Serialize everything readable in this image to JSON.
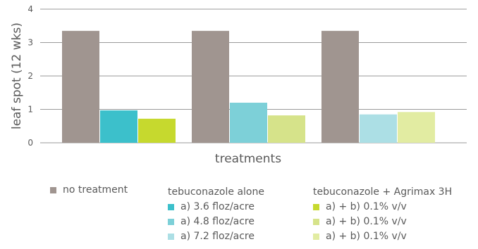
{
  "chart_data": {
    "type": "bar",
    "xlabel": "treatments",
    "ylabel": "leaf spot (12 wks)",
    "ylim": [
      0,
      4
    ],
    "yticks": [
      0,
      1,
      2,
      3,
      4
    ],
    "grid": true,
    "groups": [
      {
        "bars": [
          {
            "label": "no treatment",
            "value": 3.35,
            "color": "#a09590"
          },
          {
            "label": "tebuconazole alone a) 3.6 floz/acre",
            "value": 0.97,
            "color": "#3cc0cb"
          },
          {
            "label": "tebuconazole + Agrimax 3H a) + b) 0.1% v/v",
            "value": 0.72,
            "color": "#c6d92e"
          }
        ]
      },
      {
        "bars": [
          {
            "label": "no treatment",
            "value": 3.35,
            "color": "#a09590"
          },
          {
            "label": "tebuconazole alone a) 4.8 floz/acre",
            "value": 1.2,
            "color": "#7dd0d8"
          },
          {
            "label": "tebuconazole + Agrimax 3H a) + b) 0.1% v/v",
            "value": 0.82,
            "color": "#d6e38a"
          }
        ]
      },
      {
        "bars": [
          {
            "label": "no treatment",
            "value": 3.35,
            "color": "#a09590"
          },
          {
            "label": "tebuconazole alone a) 7.2 floz/acre",
            "value": 0.85,
            "color": "#acdfe5"
          },
          {
            "label": "tebuconazole + Agrimax 3H a) + b) 0.1% v/v",
            "value": 0.92,
            "color": "#e2eca2"
          }
        ]
      }
    ]
  },
  "legend": {
    "no_treatment": {
      "label": "no treatment",
      "color": "#a09590"
    },
    "alone": {
      "title": "tebuconazole alone",
      "items": [
        {
          "label": "a) 3.6 floz/acre",
          "color": "#3cc0cb"
        },
        {
          "label": "a) 4.8 floz/acre",
          "color": "#7dd0d8"
        },
        {
          "label": "a) 7.2 floz/acre",
          "color": "#acdfe5"
        }
      ]
    },
    "agrimax": {
      "title": "tebuconazole + Agrimax 3H",
      "items": [
        {
          "label": "a) + b) 0.1% v/v",
          "color": "#c6d92e"
        },
        {
          "label": "a) + b) 0.1% v/v",
          "color": "#d6e38a"
        },
        {
          "label": "a) + b) 0.1% v/v",
          "color": "#e2eca2"
        }
      ]
    }
  }
}
